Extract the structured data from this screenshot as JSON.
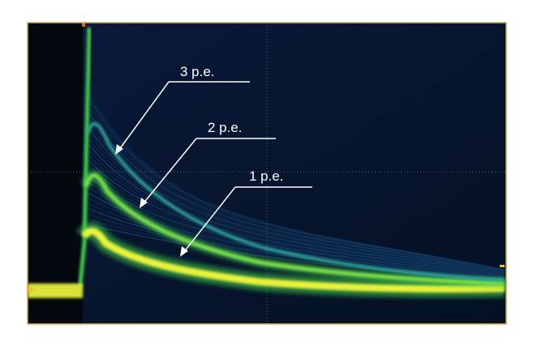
{
  "scope": {
    "colors": {
      "background": "#061226",
      "baseline_band": "#f2ee3a",
      "pulse_core": "#e8f23a",
      "pulse_mid": "#3fd04a",
      "trace_fade": "#1f6ea8",
      "grid": "#8a95a8",
      "frame": "#c9a64a",
      "marker": "#f0c020"
    },
    "annotations": [
      {
        "id": "pe3",
        "label": "3 p.e."
      },
      {
        "id": "pe2",
        "label": "2 p.e."
      },
      {
        "id": "pe1",
        "label": "1 p.e."
      }
    ]
  }
}
